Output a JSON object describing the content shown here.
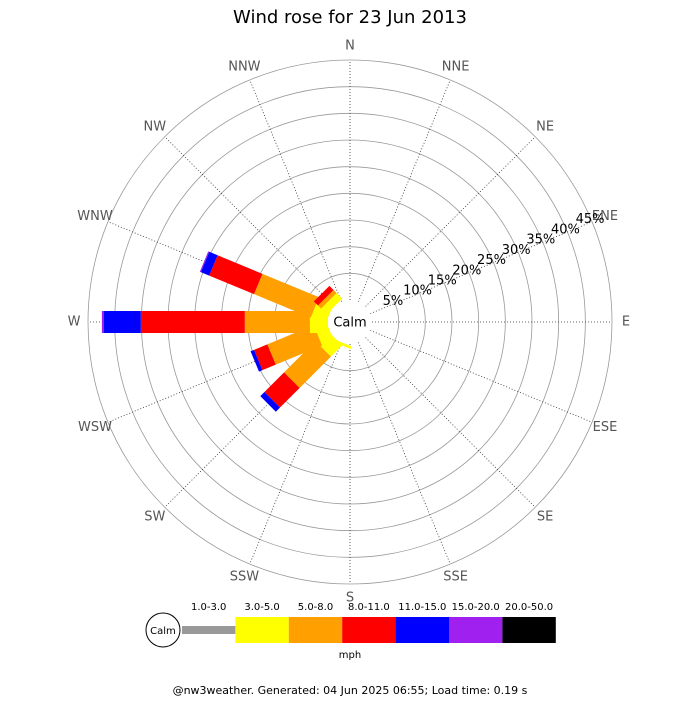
{
  "chart_data": {
    "type": "windrose",
    "title": "Wind rose for 23 Jun 2013",
    "calm_label": "Calm",
    "categories": [
      "N",
      "NNE",
      "NE",
      "ENE",
      "E",
      "ESE",
      "SE",
      "SSE",
      "S",
      "SSW",
      "SW",
      "WSW",
      "W",
      "WNW",
      "NW",
      "NNW"
    ],
    "rlim": [
      0,
      45
    ],
    "rticks": [
      {
        "value": 5,
        "label": "5%"
      },
      {
        "value": 10,
        "label": "10%"
      },
      {
        "value": 15,
        "label": "15%"
      },
      {
        "value": 20,
        "label": "20%"
      },
      {
        "value": 25,
        "label": "25%"
      },
      {
        "value": 30,
        "label": "30%"
      },
      {
        "value": 35,
        "label": "35%"
      },
      {
        "value": 40,
        "label": "40%"
      },
      {
        "value": 45,
        "label": "45%"
      }
    ],
    "series": [
      {
        "name": "1.0-3.0",
        "color": "#999999",
        "values": [
          0,
          0,
          0,
          0,
          0,
          0,
          0,
          0,
          0,
          0,
          0,
          0,
          0,
          0,
          0,
          0
        ]
      },
      {
        "name": "3.0-5.0",
        "color": "#ffff00",
        "values": [
          0,
          0,
          0,
          0,
          0,
          0,
          0,
          0,
          0,
          0.5,
          3.0,
          2.4,
          3.4,
          3.0,
          1.5,
          0
        ]
      },
      {
        "name": "5.0-8.0",
        "color": "#ffa000",
        "values": [
          0,
          0,
          0,
          0,
          0,
          0,
          0,
          0,
          0,
          0,
          8.3,
          9.4,
          12.2,
          11.5,
          0.8,
          0
        ]
      },
      {
        "name": "8.0-11.0",
        "color": "#ff0000",
        "values": [
          0,
          0,
          0,
          0,
          0,
          0,
          0,
          0,
          0,
          0,
          5.2,
          2.7,
          19.5,
          9.1,
          1.1,
          0
        ]
      },
      {
        "name": "11.0-15.0",
        "color": "#0000ff",
        "values": [
          0,
          0,
          0,
          0,
          0,
          0,
          0,
          0,
          0,
          0,
          1.1,
          0.7,
          6.9,
          1.7,
          0,
          0
        ]
      },
      {
        "name": "15.0-20.0",
        "color": "#a020f0",
        "values": [
          0,
          0,
          0,
          0,
          0,
          0,
          0,
          0,
          0,
          0,
          0,
          0,
          0.4,
          0.2,
          0,
          0
        ]
      },
      {
        "name": "20.0-50.0",
        "color": "#000000",
        "values": [
          0,
          0,
          0,
          0,
          0,
          0,
          0,
          0,
          0,
          0,
          0,
          0,
          0,
          0,
          0,
          0
        ]
      }
    ],
    "unit": "mph",
    "footer": "@nw3weather. Generated: 04 Jun 2025 06:55; Load time: 0.19 s"
  }
}
